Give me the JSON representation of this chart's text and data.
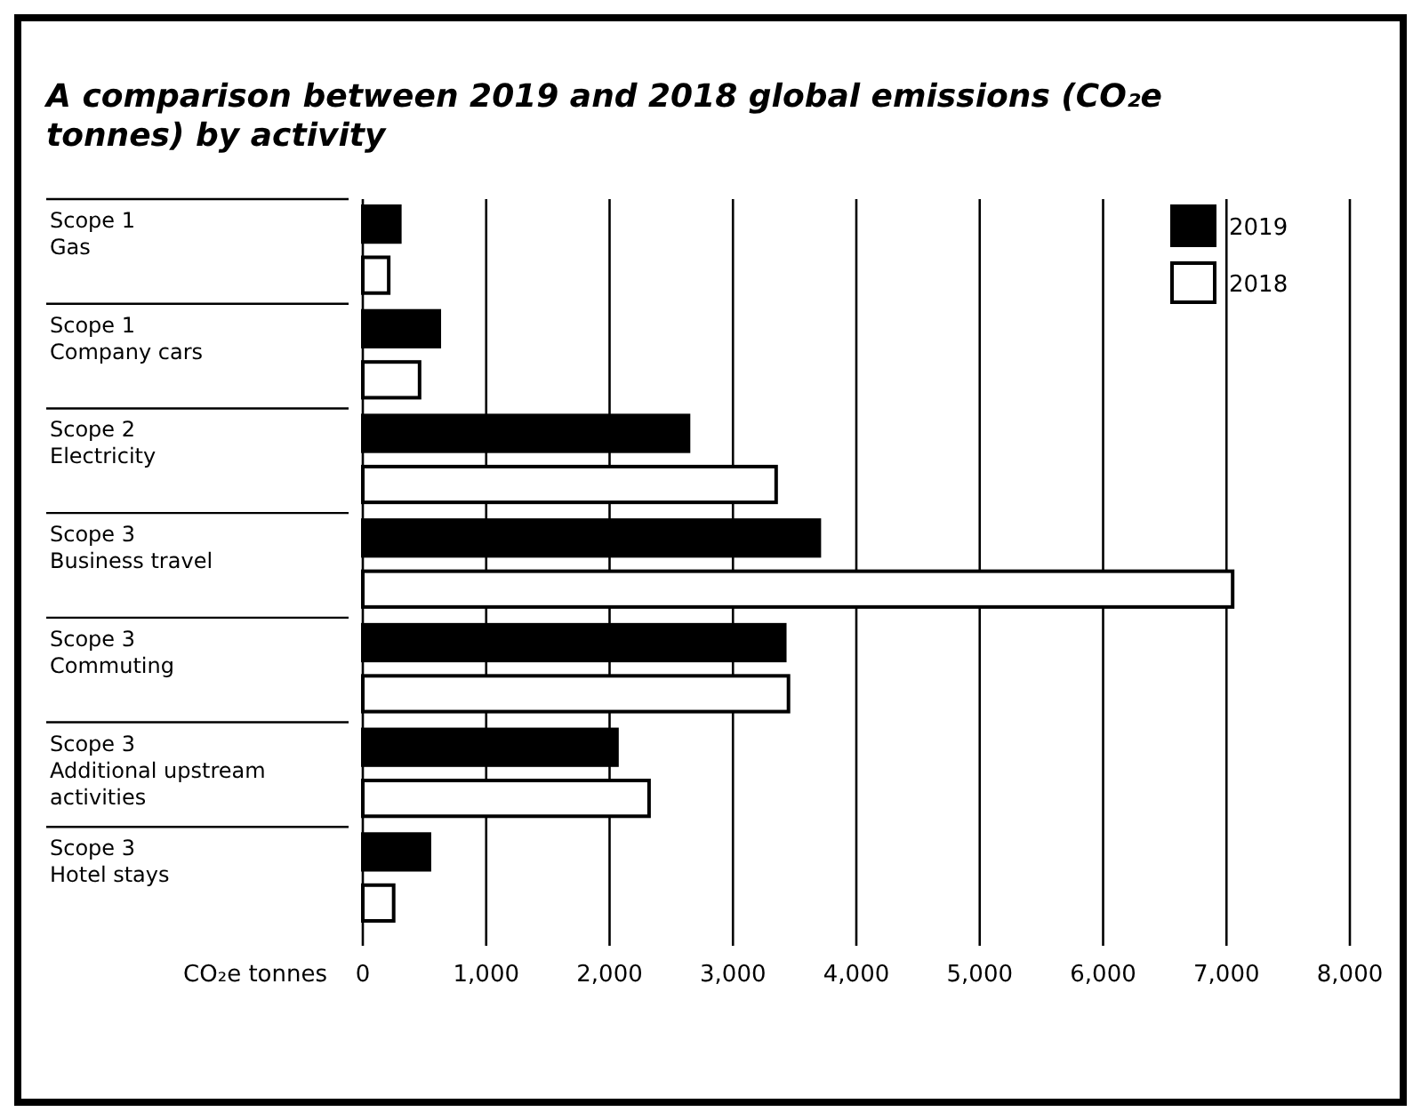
{
  "chart_data": {
    "type": "bar",
    "orientation": "horizontal",
    "title": "A comparison between 2019 and 2018 global emissions (CO₂e tonnes) by activity",
    "xlabel": "CO₂e tonnes",
    "categories": [
      "Scope 1\nGas",
      "Scope 1\nCompany cars",
      "Scope 2\nElectricity",
      "Scope 3\nBusiness travel",
      "Scope 3\nCommuting",
      "Scope 3\nAdditional upstream\nactivities",
      "Scope 3\nHotel stays"
    ],
    "series": [
      {
        "name": "2019",
        "color": "#000000",
        "values": [
          300,
          620,
          2640,
          3700,
          3420,
          2060,
          540
        ]
      },
      {
        "name": "2018",
        "color": "#ffffff",
        "values": [
          210,
          460,
          3350,
          7050,
          3450,
          2320,
          250
        ]
      }
    ],
    "xlim": [
      0,
      8000
    ],
    "xticks": [
      {
        "value": 0,
        "label": "0"
      },
      {
        "value": 1000,
        "label": "1,000"
      },
      {
        "value": 2000,
        "label": "2,000"
      },
      {
        "value": 3000,
        "label": "3,000"
      },
      {
        "value": 4000,
        "label": "4,000"
      },
      {
        "value": 5000,
        "label": "5,000"
      },
      {
        "value": 6000,
        "label": "6,000"
      },
      {
        "value": 7000,
        "label": "7,000"
      },
      {
        "value": 8000,
        "label": "8,000"
      }
    ],
    "grid": "x",
    "legend": "top right"
  }
}
